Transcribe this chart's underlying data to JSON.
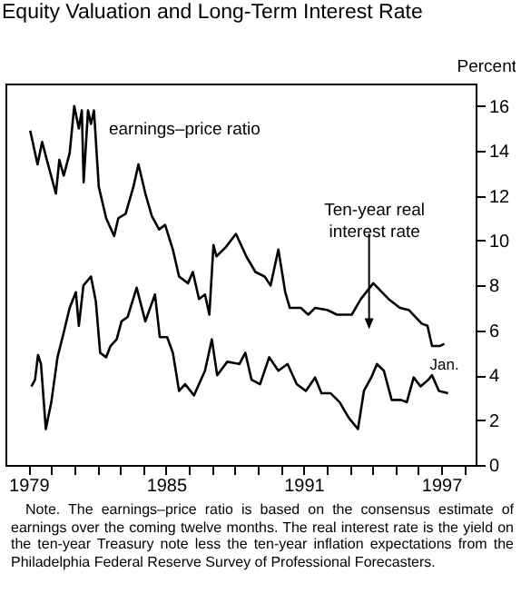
{
  "chart_data": {
    "type": "line",
    "title": "Equity Valuation and Long-Term Interest Rate",
    "ylabel": "Percent",
    "xlim": [
      1978,
      1998.5
    ],
    "xticks": [
      {
        "value": 1979,
        "label": "1979"
      },
      {
        "value": 1980,
        "label": null
      },
      {
        "value": 1981,
        "label": null
      },
      {
        "value": 1982,
        "label": null
      },
      {
        "value": 1983,
        "label": null
      },
      {
        "value": 1984,
        "label": null
      },
      {
        "value": 1985,
        "label": "1985"
      },
      {
        "value": 1986,
        "label": null
      },
      {
        "value": 1987,
        "label": null
      },
      {
        "value": 1988,
        "label": null
      },
      {
        "value": 1989,
        "label": null
      },
      {
        "value": 1990,
        "label": null
      },
      {
        "value": 1991,
        "label": "1991"
      },
      {
        "value": 1992,
        "label": null
      },
      {
        "value": 1993,
        "label": null
      },
      {
        "value": 1994,
        "label": null
      },
      {
        "value": 1995,
        "label": null
      },
      {
        "value": 1996,
        "label": null
      },
      {
        "value": 1997,
        "label": "1997"
      },
      {
        "value": 1998,
        "label": null
      }
    ],
    "ylim": [
      0,
      17
    ],
    "yticks": [
      0,
      2,
      4,
      6,
      8,
      10,
      12,
      14,
      16
    ],
    "grid": false,
    "legend": false,
    "marker": "none",
    "line_style": "solid",
    "series": [
      {
        "name": "earnings–price ratio",
        "color": "#000000",
        "x": [
          1979.08,
          1979.4,
          1979.6,
          1979.83,
          1980.2,
          1980.35,
          1980.54,
          1980.8,
          1981.0,
          1981.2,
          1981.33,
          1981.41,
          1981.6,
          1981.73,
          1981.86,
          1982.07,
          1982.39,
          1982.74,
          1982.92,
          1983.24,
          1983.58,
          1983.8,
          1984.1,
          1984.38,
          1984.7,
          1984.96,
          1985.3,
          1985.57,
          1985.96,
          1986.17,
          1986.44,
          1986.7,
          1986.89,
          1987.07,
          1987.2,
          1987.6,
          1988.05,
          1988.5,
          1988.9,
          1989.3,
          1989.56,
          1989.9,
          1990.2,
          1990.4,
          1990.88,
          1991.2,
          1991.5,
          1992.05,
          1992.45,
          1993.1,
          1993.5,
          1994.04,
          1994.7,
          1995.2,
          1995.6,
          1996.15,
          1996.4,
          1996.6,
          1996.93,
          1997.14
        ],
        "values": [
          14.9,
          13.4,
          14.4,
          13.5,
          12.1,
          13.6,
          12.9,
          13.9,
          16.0,
          15.0,
          15.8,
          12.6,
          15.8,
          15.2,
          15.8,
          12.4,
          11.0,
          10.2,
          11.0,
          11.2,
          12.4,
          13.4,
          12.1,
          11.1,
          10.5,
          10.7,
          9.6,
          8.4,
          8.1,
          8.6,
          7.4,
          7.6,
          6.7,
          9.8,
          9.3,
          9.7,
          10.3,
          9.3,
          8.6,
          8.4,
          8.0,
          9.6,
          7.7,
          7.0,
          7.0,
          6.7,
          7.0,
          6.9,
          6.7,
          6.7,
          7.4,
          8.1,
          7.4,
          7.0,
          6.9,
          6.3,
          6.2,
          5.3,
          5.3,
          5.4
        ]
      },
      {
        "name": "Ten-year real interest rate",
        "color": "#000000",
        "x": [
          1979.13,
          1979.29,
          1979.42,
          1979.55,
          1979.76,
          1980.0,
          1980.27,
          1980.54,
          1980.8,
          1981.07,
          1981.2,
          1981.4,
          1981.73,
          1981.94,
          1982.13,
          1982.39,
          1982.58,
          1982.85,
          1983.06,
          1983.33,
          1983.72,
          1984.1,
          1984.52,
          1984.73,
          1985.05,
          1985.3,
          1985.57,
          1985.83,
          1986.22,
          1986.7,
          1987.0,
          1987.23,
          1987.67,
          1988.2,
          1988.46,
          1988.73,
          1989.1,
          1989.5,
          1989.9,
          1990.3,
          1990.7,
          1991.1,
          1991.5,
          1991.78,
          1992.17,
          1992.57,
          1992.97,
          1993.37,
          1993.63,
          1993.95,
          1994.2,
          1994.5,
          1994.84,
          1995.24,
          1995.5,
          1995.8,
          1996.1,
          1996.44,
          1996.6,
          1996.9,
          1997.3
        ],
        "values": [
          3.5,
          3.8,
          4.9,
          4.5,
          1.6,
          2.8,
          4.8,
          5.9,
          7.0,
          7.7,
          6.2,
          8.0,
          8.4,
          7.3,
          5.0,
          4.8,
          5.3,
          5.6,
          6.4,
          6.6,
          7.9,
          6.4,
          7.6,
          5.7,
          5.7,
          5.0,
          3.3,
          3.6,
          3.1,
          4.2,
          5.6,
          4.0,
          4.6,
          4.5,
          5.0,
          3.8,
          3.6,
          4.8,
          4.2,
          4.5,
          3.6,
          3.3,
          3.9,
          3.2,
          3.2,
          2.8,
          2.1,
          1.6,
          3.3,
          3.9,
          4.5,
          4.2,
          2.9,
          2.9,
          2.8,
          3.9,
          3.5,
          3.8,
          4.0,
          3.3,
          3.2
        ]
      }
    ],
    "annotations": [
      {
        "text": "Jan.",
        "x": 1997.14,
        "y": 5.4
      },
      "Note. The earnings–price ratio is based on the consensus estimate of earnings over the coming twelve months. The real interest rate is the yield on the ten-year Treasury note less the ten-year inflation expectations from the Philadelphia Federal Reserve Survey of Professional Forecasters."
    ]
  }
}
